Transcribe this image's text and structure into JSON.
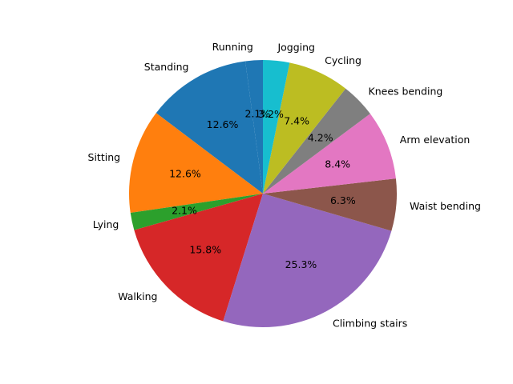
{
  "chart_data": {
    "type": "pie",
    "title": "",
    "slices": [
      {
        "label": "Running",
        "value": 2.1,
        "pct_label": "2.1%",
        "color": "#1f77b4"
      },
      {
        "label": "Standing",
        "value": 12.6,
        "pct_label": "12.6%",
        "color": "#1f77b4"
      },
      {
        "label": "Sitting",
        "value": 12.6,
        "pct_label": "12.6%",
        "color": "#ff7f0e"
      },
      {
        "label": "Lying",
        "value": 2.1,
        "pct_label": "2.1%",
        "color": "#2ca02c"
      },
      {
        "label": "Walking",
        "value": 15.8,
        "pct_label": "15.8%",
        "color": "#d62728"
      },
      {
        "label": "Climbing stairs",
        "value": 25.3,
        "pct_label": "25.3%",
        "color": "#9467bd"
      },
      {
        "label": "Waist bending",
        "value": 6.3,
        "pct_label": "6.3%",
        "color": "#8c564b"
      },
      {
        "label": "Arm elevation",
        "value": 8.4,
        "pct_label": "8.4%",
        "color": "#e377c2"
      },
      {
        "label": "Knees bending",
        "value": 4.2,
        "pct_label": "4.2%",
        "color": "#7f7f7f"
      },
      {
        "label": "Cycling",
        "value": 7.4,
        "pct_label": "7.4%",
        "color": "#bcbd22"
      },
      {
        "label": "Jogging",
        "value": 3.2,
        "pct_label": "3.2%",
        "color": "#17becf"
      }
    ],
    "start_angle_deg": 90,
    "direction": "counterclockwise"
  }
}
